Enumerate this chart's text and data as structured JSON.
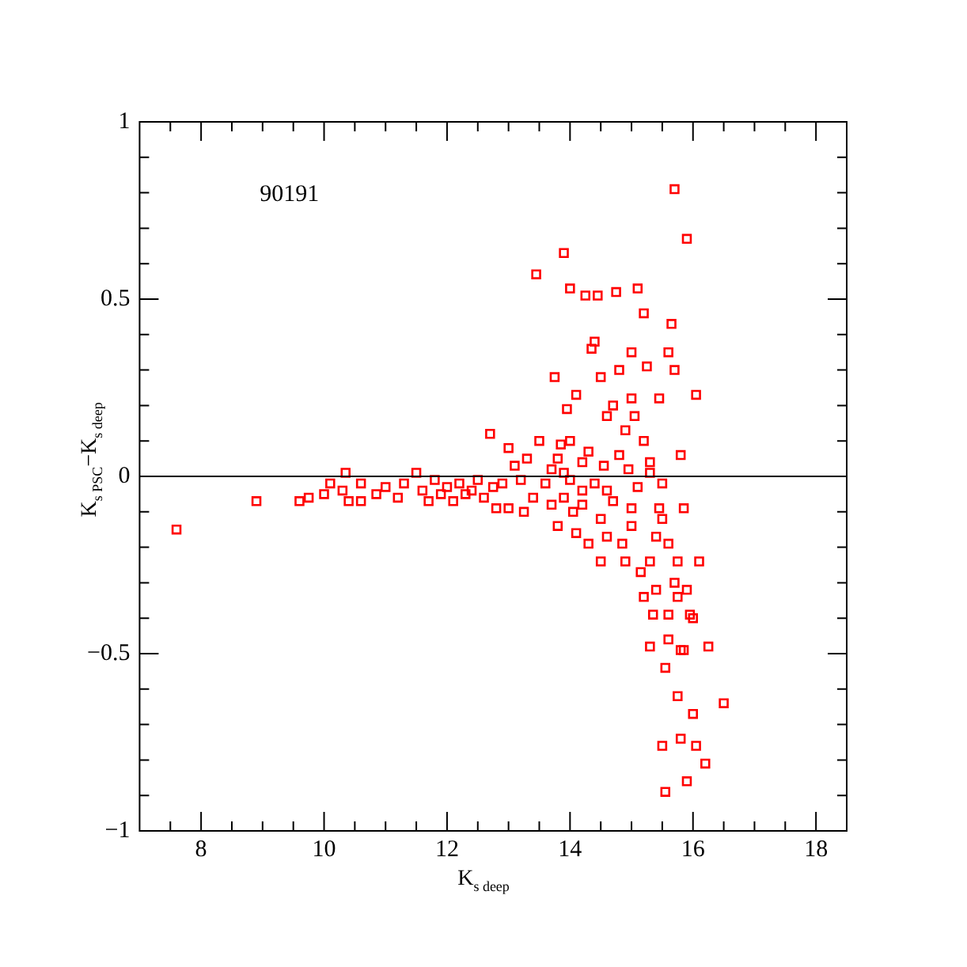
{
  "chart_data": {
    "type": "scatter",
    "xlabel": "K$_{s deep}$",
    "ylabel": "K$_{s PSC}$−K$_{s deep}$",
    "annotations": [
      "90191"
    ],
    "xlim": [
      7,
      18.5
    ],
    "xticks": [
      {
        "value": 7.5,
        "label": null
      },
      8,
      {
        "value": 8.5,
        "label": null
      },
      {
        "value": 9,
        "label": null
      },
      {
        "value": 9.5,
        "label": null
      },
      10,
      {
        "value": 10.5,
        "label": null
      },
      {
        "value": 11,
        "label": null
      },
      {
        "value": 11.5,
        "label": null
      },
      12,
      {
        "value": 12.5,
        "label": null
      },
      {
        "value": 13,
        "label": null
      },
      {
        "value": 13.5,
        "label": null
      },
      14,
      {
        "value": 14.5,
        "label": null
      },
      {
        "value": 15,
        "label": null
      },
      {
        "value": 15.5,
        "label": null
      },
      16,
      {
        "value": 16.5,
        "label": null
      },
      {
        "value": 17,
        "label": null
      },
      {
        "value": 17.5,
        "label": null
      },
      18
    ],
    "ylim": [
      -1,
      1
    ],
    "yticks": [
      -1,
      {
        "value": -0.9,
        "label": null
      },
      {
        "value": -0.8,
        "label": null
      },
      {
        "value": -0.7,
        "label": null
      },
      {
        "value": -0.6,
        "label": null
      },
      -0.5,
      {
        "value": -0.4,
        "label": null
      },
      {
        "value": -0.3,
        "label": null
      },
      {
        "value": -0.2,
        "label": null
      },
      {
        "value": -0.1,
        "label": null
      },
      0,
      {
        "value": 0.1,
        "label": null
      },
      {
        "value": 0.2,
        "label": null
      },
      {
        "value": 0.3,
        "label": null
      },
      {
        "value": 0.4,
        "label": null
      },
      0.5,
      {
        "value": 0.6,
        "label": null
      },
      {
        "value": 0.7,
        "label": null
      },
      {
        "value": 0.8,
        "label": null
      },
      {
        "value": 0.9,
        "label": null
      },
      1
    ],
    "grid": false,
    "legend": false,
    "marker": "square",
    "ref_lines": [
      {
        "axis": "y",
        "value": 0,
        "color": "#000000"
      }
    ],
    "series": [
      {
        "color": "#ff0000",
        "x": [
          7.6,
          8.9,
          9.6,
          9.75,
          10.0,
          10.1,
          10.3,
          10.35,
          10.4,
          10.6,
          10.6,
          10.85,
          11.0,
          11.2,
          11.3,
          11.5,
          11.6,
          11.7,
          11.8,
          11.9,
          12.0,
          12.1,
          12.2,
          12.3,
          12.4,
          12.5,
          12.6,
          12.7,
          12.75,
          12.8,
          12.9,
          13.0,
          13.0,
          13.1,
          13.2,
          13.25,
          13.3,
          13.4,
          13.45,
          13.5,
          13.6,
          13.7,
          13.7,
          13.75,
          13.8,
          13.8,
          13.85,
          13.9,
          13.9,
          13.95,
          14.0,
          14.0,
          14.0,
          14.05,
          14.1,
          14.1,
          14.2,
          14.2,
          14.25,
          14.3,
          14.3,
          14.35,
          14.4,
          14.4,
          14.45,
          14.5,
          14.5,
          14.5,
          14.55,
          14.6,
          14.6,
          14.7,
          14.7,
          14.75,
          14.8,
          14.8,
          14.85,
          14.9,
          14.9,
          14.95,
          15.0,
          15.0,
          15.0,
          15.05,
          15.1,
          15.1,
          15.15,
          15.2,
          15.2,
          15.2,
          15.25,
          15.3,
          15.3,
          15.35,
          15.4,
          15.45,
          15.5,
          15.55,
          15.55,
          15.6,
          15.6,
          15.65,
          15.7,
          15.7,
          15.75,
          15.75,
          15.8,
          15.8,
          15.85,
          15.9,
          15.9,
          15.9,
          15.95,
          16.0,
          16.05,
          16.05,
          16.1,
          16.2,
          16.25,
          16.5,
          15.6,
          15.5,
          15.7,
          15.8,
          15.3,
          14.6,
          14.2,
          13.9,
          15.0,
          15.5,
          15.3,
          16.0,
          15.85,
          15.6,
          15.45,
          15.75,
          15.4
        ],
        "values": [
          -0.15,
          -0.07,
          -0.07,
          -0.06,
          -0.05,
          -0.02,
          -0.04,
          0.01,
          -0.07,
          -0.02,
          -0.07,
          -0.05,
          -0.03,
          -0.06,
          -0.02,
          0.01,
          -0.04,
          -0.07,
          -0.01,
          -0.05,
          -0.03,
          -0.07,
          -0.02,
          -0.05,
          -0.04,
          -0.01,
          -0.06,
          0.12,
          -0.03,
          -0.09,
          -0.02,
          0.08,
          -0.09,
          0.03,
          -0.01,
          -0.1,
          0.05,
          -0.06,
          0.57,
          0.1,
          -0.02,
          0.02,
          -0.08,
          0.28,
          0.05,
          -0.14,
          0.09,
          0.63,
          -0.06,
          0.19,
          0.53,
          0.1,
          -0.01,
          -0.1,
          0.23,
          -0.16,
          0.04,
          -0.08,
          0.51,
          0.07,
          -0.19,
          0.36,
          0.38,
          -0.02,
          0.51,
          0.28,
          -0.24,
          -0.12,
          0.03,
          0.17,
          -0.17,
          0.2,
          -0.07,
          0.52,
          0.3,
          0.06,
          -0.19,
          0.13,
          -0.24,
          0.02,
          0.22,
          0.35,
          -0.14,
          0.17,
          0.53,
          -0.03,
          -0.27,
          0.46,
          0.1,
          -0.34,
          0.31,
          -0.48,
          0.04,
          -0.39,
          -0.17,
          0.22,
          -0.76,
          -0.89,
          -0.54,
          0.35,
          -0.46,
          0.43,
          0.81,
          0.3,
          -0.34,
          -0.62,
          0.06,
          -0.49,
          -0.09,
          0.67,
          -0.86,
          -0.32,
          -0.39,
          -0.67,
          0.23,
          -0.76,
          -0.24,
          -0.81,
          -0.48,
          -0.64,
          -0.19,
          -0.12,
          -0.3,
          -0.74,
          -0.24,
          -0.04,
          -0.04,
          0.01,
          -0.09,
          -0.02,
          0.01,
          -0.4,
          -0.49,
          -0.39,
          -0.09,
          -0.24,
          -0.32
        ]
      }
    ]
  }
}
